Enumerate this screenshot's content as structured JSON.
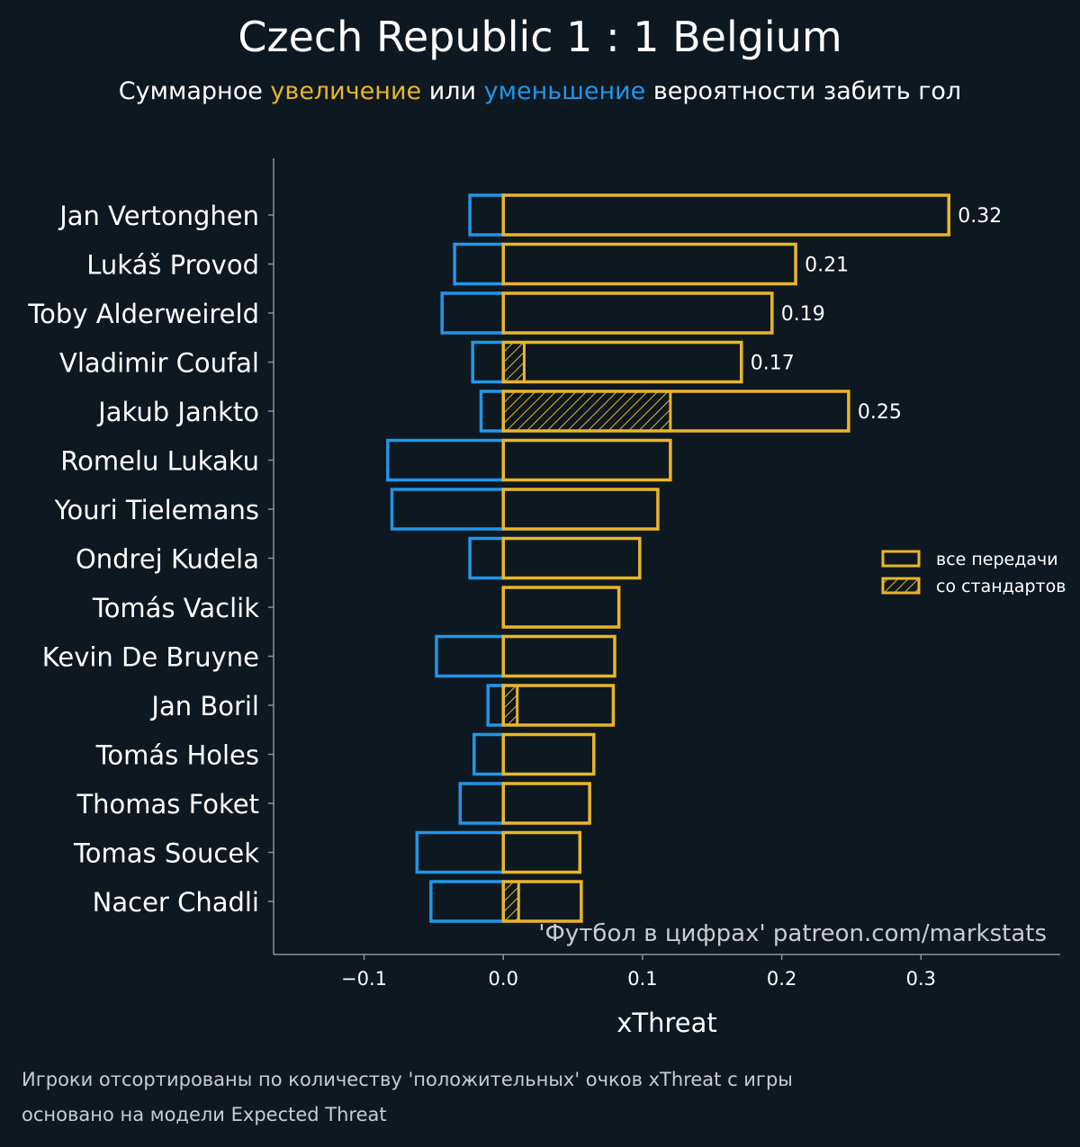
{
  "header": {
    "title": "Czech Republic 1 : 1 Belgium",
    "subtitle_prefix": "Суммарное ",
    "subtitle_pos": "увеличение",
    "subtitle_mid": " или ",
    "subtitle_neg": "уменьшение",
    "subtitle_suffix": " вероятности забить гол"
  },
  "footer": {
    "line1": "Игроки отсортированы по количеству 'положительных' очков xThreat с игры",
    "line2": "основано на модели Expected Threat"
  },
  "colors": {
    "background": "#0e1821",
    "positive": "#e8b629",
    "negative": "#2196e8",
    "axis": "#8a9299",
    "text": "#ffffff"
  },
  "chart_data": {
    "type": "bar",
    "orientation": "horizontal",
    "xlabel": "xThreat",
    "xlim": [
      -0.165,
      0.4
    ],
    "xticks": [
      -0.1,
      0.0,
      0.1,
      0.2,
      0.3
    ],
    "xtick_labels": [
      "−0.1",
      "0.0",
      "0.1",
      "0.2",
      "0.3"
    ],
    "watermark": "'Футбол в цифрах' patreon.com/markstats",
    "legend": {
      "position": "center-right",
      "entries": [
        "все передачи",
        "со стандартов"
      ]
    },
    "categories": [
      "Jan Vertonghen",
      "Lukáš Provod",
      "Toby Alderweireld",
      "Vladimir Coufal",
      "Jakub Jankto",
      "Romelu Lukaku",
      "Youri Tielemans",
      "Ondrej Kudela",
      "Tomás Vaclik",
      "Kevin De Bruyne",
      "Jan Boril",
      "Tomás Holes",
      "Thomas Foket",
      "Tomas Soucek",
      "Nacer Chadli"
    ],
    "series": [
      {
        "name": "positive (все передачи)",
        "values": [
          0.32,
          0.21,
          0.193,
          0.171,
          0.248,
          0.12,
          0.111,
          0.098,
          0.083,
          0.08,
          0.079,
          0.065,
          0.062,
          0.055,
          0.056
        ]
      },
      {
        "name": "negative",
        "values": [
          -0.024,
          -0.035,
          -0.044,
          -0.022,
          -0.016,
          -0.083,
          -0.08,
          -0.024,
          0.0,
          -0.048,
          -0.011,
          -0.021,
          -0.031,
          -0.062,
          -0.052
        ]
      },
      {
        "name": "со стандартов",
        "values": [
          0,
          0,
          0,
          0.015,
          0.12,
          0,
          0,
          0,
          0,
          0,
          0.01,
          0,
          0,
          0,
          0.011
        ]
      }
    ],
    "data_labels": [
      "0.32",
      "0.21",
      "0.19",
      "0.17",
      "0.25",
      "",
      "",
      "",
      "",
      "",
      "",
      "",
      "",
      "",
      ""
    ]
  }
}
